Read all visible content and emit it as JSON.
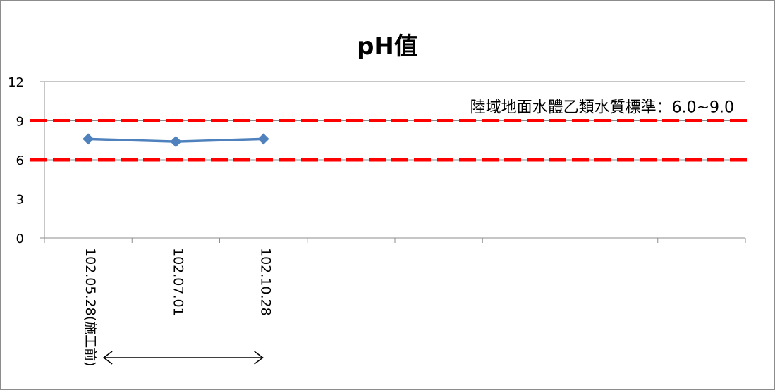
{
  "chart_data": {
    "type": "line",
    "title": "pH值",
    "categories": [
      "102.05.28(施工前)",
      "102.07.01",
      "102.10.28",
      "",
      "",
      "",
      "",
      ""
    ],
    "series": [
      {
        "values": [
          7.6,
          7.4,
          7.6,
          null,
          null,
          null,
          null,
          null
        ]
      }
    ],
    "reference_lines": [
      {
        "value": 9,
        "style": "dashed",
        "color": "#ff0000"
      },
      {
        "value": 6,
        "style": "dashed",
        "color": "#ff0000"
      }
    ],
    "annotation": "陸域地面水體乙類水質標準：6.0~9.0",
    "ylim": [
      0,
      12
    ],
    "yticks": [
      0,
      3,
      6,
      9,
      12
    ],
    "grid": true,
    "legend": "none",
    "colors": {
      "series": "#4f81bd",
      "reference": "#ff0000",
      "grid": "#8c8c8c",
      "axis": "#8c8c8c"
    }
  }
}
